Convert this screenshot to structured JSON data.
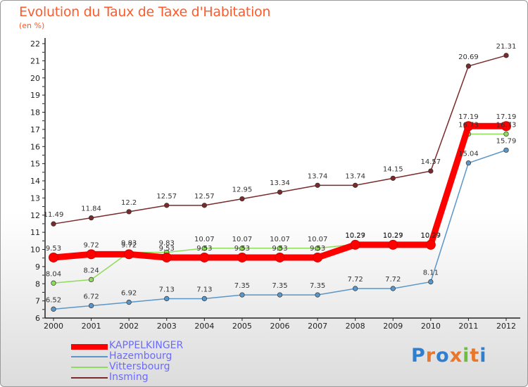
{
  "title": "Evolution du Taux de Taxe d'Habitation",
  "subtitle": "(en %)",
  "logo_text": "Proxiti",
  "chart_data": {
    "type": "line",
    "x": [
      "2000",
      "2001",
      "2002",
      "2003",
      "2004",
      "2005",
      "2006",
      "2007",
      "2008",
      "2009",
      "2010",
      "2011",
      "2012"
    ],
    "ylim": [
      6,
      22
    ],
    "yticks": [
      6,
      7,
      8,
      9,
      10,
      11,
      12,
      13,
      14,
      15,
      16,
      17,
      18,
      19,
      20,
      21,
      22
    ],
    "grid": false,
    "legend_position": "bottom-left",
    "series": [
      {
        "name": "KAPPELKINGER",
        "color": "#ff0000",
        "values": [
          9.53,
          9.72,
          9.72,
          9.53,
          9.53,
          9.53,
          9.53,
          9.53,
          10.27,
          10.27,
          10.27,
          17.19,
          17.19
        ],
        "labels": [
          "9.53",
          "9.72",
          "9.72",
          "9.53",
          "9.53",
          "9.53",
          "9.53",
          "9.53",
          "10.27",
          "10.27",
          "10.27",
          "17.19",
          "17.19"
        ]
      },
      {
        "name": "Hazembourg",
        "color": "#5b96c8",
        "values": [
          6.52,
          6.72,
          6.92,
          7.13,
          7.13,
          7.35,
          7.35,
          7.35,
          7.72,
          7.72,
          8.11,
          15.04,
          15.79
        ],
        "labels": [
          "6.52",
          "6.72",
          "6.92",
          "7.13",
          "7.13",
          "7.35",
          "7.35",
          "7.35",
          "7.72",
          "7.72",
          "8.11",
          "15.04",
          "15.79"
        ]
      },
      {
        "name": "Vittersbourg",
        "color": "#8fdc5a",
        "values": [
          8.04,
          8.24,
          9.83,
          9.83,
          10.07,
          10.07,
          10.07,
          10.07,
          10.29,
          10.29,
          10.29,
          16.73,
          16.73
        ],
        "labels": [
          "8.04",
          "8.24",
          "9.83",
          "9.83",
          "10.07",
          "10.07",
          "10.07",
          "10.07",
          "10.29",
          "10.29",
          "10.29",
          "16.73",
          "16.73"
        ]
      },
      {
        "name": "Insming",
        "color": "#7a2a2a",
        "values": [
          11.49,
          11.84,
          12.2,
          12.57,
          12.57,
          12.95,
          13.34,
          13.74,
          13.74,
          14.15,
          14.57,
          20.69,
          21.31
        ],
        "labels": [
          "11.49",
          "11.84",
          "12.2",
          "12.57",
          "12.57",
          "12.95",
          "13.34",
          "13.74",
          "13.74",
          "14.15",
          "14.57",
          "20.69",
          "21.31"
        ]
      }
    ]
  },
  "legend": [
    {
      "label": "KAPPELKINGER",
      "color": "#ff0000"
    },
    {
      "label": "Hazembourg",
      "color": "#5b96c8"
    },
    {
      "label": "Vittersbourg",
      "color": "#8fdc5a"
    },
    {
      "label": "Insming",
      "color": "#7a2a2a"
    }
  ]
}
